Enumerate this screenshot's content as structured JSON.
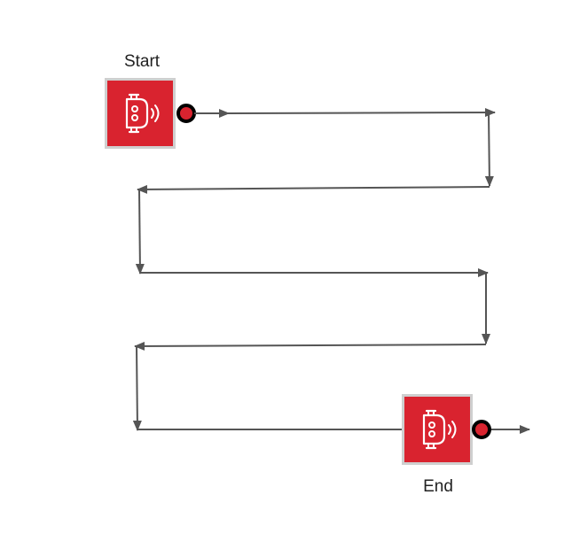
{
  "diagram": {
    "start_node": {
      "label": "Start",
      "icon": "robot-icon",
      "color": "#d9232f"
    },
    "end_node": {
      "label": "End",
      "icon": "robot-icon",
      "color": "#d9232f"
    },
    "connector_dot_color": "#d9232f",
    "line_color": "#555555"
  }
}
